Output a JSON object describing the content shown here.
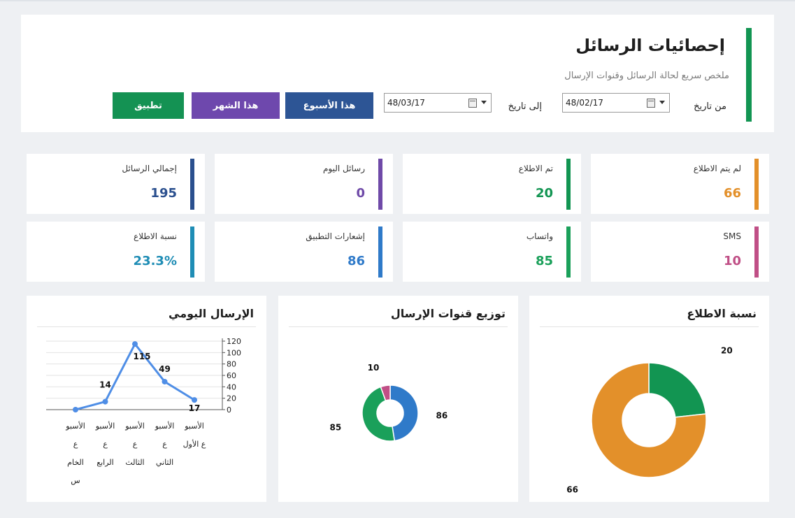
{
  "header": {
    "title": "إحصائيات الرسائل",
    "subtitle": "ملخص سريع لحالة الرسائل وقنوات الإرسال",
    "from_label": "من تاريخ",
    "to_label": "إلى تاريخ",
    "from_date": "48/02/17",
    "to_date": "48/03/17",
    "buttons": {
      "this_week": "هذا الأسبوع",
      "this_month": "هذا الشهر",
      "apply": "تطبيق"
    }
  },
  "stats": [
    {
      "label": "لم يتم الاطلاع",
      "value": "66",
      "color": "#e3902a"
    },
    {
      "label": "تم الاطلاع",
      "value": "20",
      "color": "#129552"
    },
    {
      "label": "رسائل اليوم",
      "value": "0",
      "color": "#6f4aa8"
    },
    {
      "label": "إجمالي الرسائل",
      "value": "195",
      "color": "#2a4f8e"
    },
    {
      "label": "SMS",
      "value": "10",
      "color": "#c04f86"
    },
    {
      "label": "واتساب",
      "value": "85",
      "color": "#1aa05a"
    },
    {
      "label": "إشعارات التطبيق",
      "value": "86",
      "color": "#2f7ac9"
    },
    {
      "label": "نسبة الاطلاع",
      "value": "23.3%",
      "color": "#1f8db5"
    }
  ],
  "panels": {
    "read_ratio_title": "نسبة الاطلاع",
    "channels_title": "توزيع قنوات الإرسال",
    "daily_title": "الإرسال اليومي"
  },
  "chart_data": [
    {
      "type": "pie",
      "title": "نسبة الاطلاع",
      "slices": [
        {
          "label": "20",
          "value": 20,
          "color": "#129552"
        },
        {
          "label": "66",
          "value": 66,
          "color": "#e3902a"
        }
      ]
    },
    {
      "type": "pie",
      "title": "توزيع قنوات الإرسال",
      "slices": [
        {
          "label": "86",
          "value": 86,
          "color": "#2f7ac9"
        },
        {
          "label": "85",
          "value": 85,
          "color": "#1aa05a"
        },
        {
          "label": "10",
          "value": 10,
          "color": "#c04f86"
        }
      ]
    },
    {
      "type": "line",
      "title": "الإرسال اليومي",
      "categories": [
        "الأسبوع الخامس",
        "الأسبوع الرابع",
        "الأسبوع الثالث",
        "الأسبوع الثاني",
        "الأسبوع الأول"
      ],
      "category_lines": [
        [
          "الأسبو",
          "ع",
          "الخام",
          "س"
        ],
        [
          "الأسبو",
          "ع",
          "الرابع"
        ],
        [
          "الأسبو",
          "ع",
          "الثالث"
        ],
        [
          "الأسبو",
          "ع",
          "الثاني"
        ],
        [
          "الأسبو",
          "ع الأول"
        ]
      ],
      "values": [
        0,
        14,
        115,
        49,
        17
      ],
      "yticks": [
        0,
        20,
        40,
        60,
        80,
        100,
        120
      ],
      "ylim": [
        0,
        120
      ],
      "grid": true,
      "color": "#4f8ee6"
    }
  ]
}
